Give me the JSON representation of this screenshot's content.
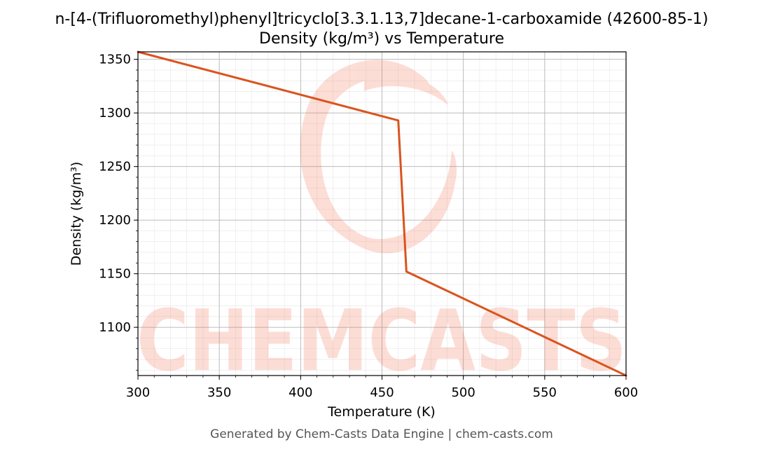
{
  "chart_data": {
    "type": "line",
    "title": "n-[4-(Trifluoromethyl)phenyl]tricyclo[3.3.1.13,7]decane-1-carboxamide (42600-85-1)",
    "subtitle": "Density (kg/m³) vs Temperature",
    "xlabel": "Temperature (K)",
    "ylabel": "Density (kg/m³)",
    "xlim": [
      300,
      600
    ],
    "ylim": [
      1055,
      1357
    ],
    "xticks": [
      300,
      350,
      400,
      450,
      500,
      550,
      600
    ],
    "yticks": [
      1100,
      1150,
      1200,
      1250,
      1300,
      1350
    ],
    "grid": true,
    "series": [
      {
        "color": "#d9541e",
        "x": [
          300,
          460,
          465,
          600
        ],
        "y": [
          1357,
          1293,
          1152,
          1055
        ]
      }
    ]
  },
  "watermark": "CHEMCASTS",
  "footer": "Generated by Chem-Casts Data Engine | chem-casts.com"
}
